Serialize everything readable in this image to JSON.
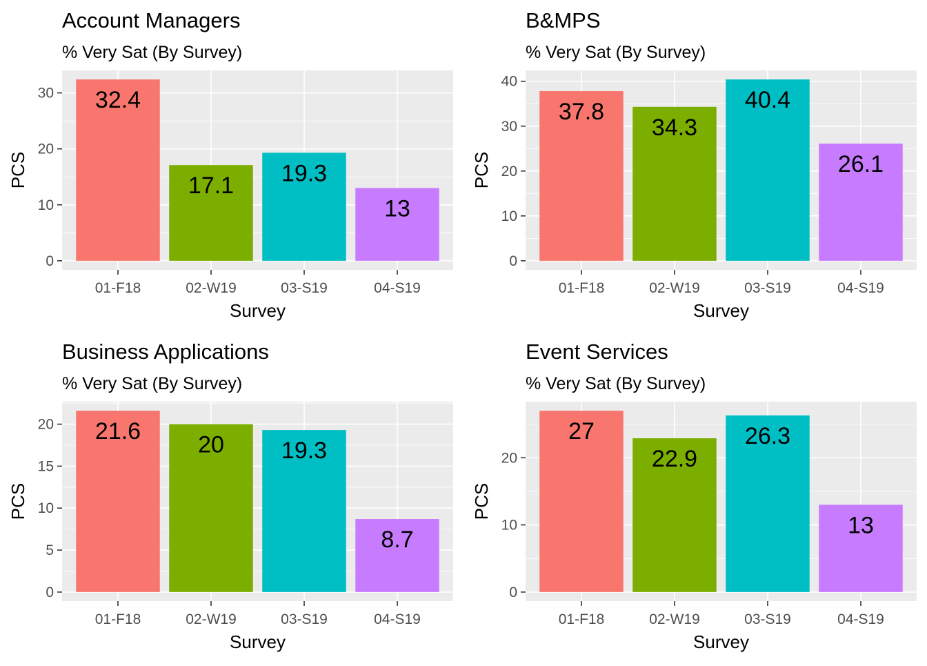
{
  "colors": {
    "panel_bg": "#EBEBEB",
    "grid": "#FFFFFF",
    "tick_text": "#4D4D4D",
    "text": "#000000"
  },
  "chart_data": [
    {
      "type": "bar",
      "title": "Account Managers",
      "subtitle": "% Very Sat (By Survey)",
      "xlabel": "Survey",
      "ylabel": "PCS",
      "categories": [
        "01-F18",
        "02-W19",
        "03-S19",
        "04-S19"
      ],
      "values": [
        32.4,
        17.1,
        19.3,
        13
      ],
      "value_labels": [
        "32.4",
        "17.1",
        "19.3",
        "13"
      ],
      "bar_colors": [
        "#F8766D",
        "#7CAE00",
        "#00BFC4",
        "#C77CFF"
      ],
      "ylim": [
        -1.62,
        34.02
      ],
      "yticks": [
        0,
        10,
        20,
        30
      ],
      "ytick_labels": [
        "0",
        "10",
        "20",
        "30"
      ],
      "grid": true
    },
    {
      "type": "bar",
      "title": "B&MPS",
      "subtitle": "% Very Sat (By Survey)",
      "xlabel": "Survey",
      "ylabel": "PCS",
      "categories": [
        "01-F18",
        "02-W19",
        "03-S19",
        "04-S19"
      ],
      "values": [
        37.8,
        34.3,
        40.4,
        26.1
      ],
      "value_labels": [
        "37.8",
        "34.3",
        "40.4",
        "26.1"
      ],
      "bar_colors": [
        "#F8766D",
        "#7CAE00",
        "#00BFC4",
        "#C77CFF"
      ],
      "ylim": [
        -2.02,
        42.42
      ],
      "yticks": [
        0,
        10,
        20,
        30,
        40
      ],
      "ytick_labels": [
        "0",
        "10",
        "20",
        "30",
        "40"
      ],
      "grid": true
    },
    {
      "type": "bar",
      "title": "Business Applications",
      "subtitle": "% Very Sat (By Survey)",
      "xlabel": "Survey",
      "ylabel": "PCS",
      "categories": [
        "01-F18",
        "02-W19",
        "03-S19",
        "04-S19"
      ],
      "values": [
        21.6,
        20,
        19.3,
        8.7
      ],
      "value_labels": [
        "21.6",
        "20",
        "19.3",
        "8.7"
      ],
      "bar_colors": [
        "#F8766D",
        "#7CAE00",
        "#00BFC4",
        "#C77CFF"
      ],
      "ylim": [
        -1.08,
        22.68
      ],
      "yticks": [
        0,
        5,
        10,
        15,
        20
      ],
      "ytick_labels": [
        "0",
        "5",
        "10",
        "15",
        "20"
      ],
      "grid": true
    },
    {
      "type": "bar",
      "title": "Event Services",
      "subtitle": "% Very Sat (By Survey)",
      "xlabel": "Survey",
      "ylabel": "PCS",
      "categories": [
        "01-F18",
        "02-W19",
        "03-S19",
        "04-S19"
      ],
      "values": [
        27,
        22.9,
        26.3,
        13
      ],
      "value_labels": [
        "27",
        "22.9",
        "26.3",
        "13"
      ],
      "bar_colors": [
        "#F8766D",
        "#7CAE00",
        "#00BFC4",
        "#C77CFF"
      ],
      "ylim": [
        -1.35,
        28.35
      ],
      "yticks": [
        0,
        10,
        20
      ],
      "ytick_labels": [
        "0",
        "10",
        "20"
      ],
      "grid": true
    }
  ]
}
